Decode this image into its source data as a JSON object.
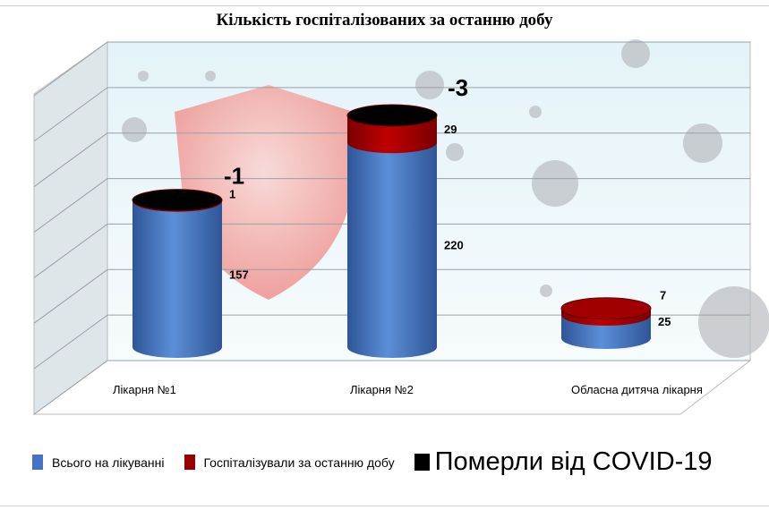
{
  "chart_data": {
    "type": "bar",
    "style": "3d-stacked-cylinder",
    "title": "Кількість госпіталізованих за останню добу",
    "categories": [
      "Лікарня №1",
      "Лікарня №2",
      "Обласна дитяча лікарня"
    ],
    "series": [
      {
        "name": "Всього на лікуванні",
        "values": [
          157,
          220,
          25
        ],
        "color": "#4472C4"
      },
      {
        "name": "Госпіталізували за останню добу",
        "values": [
          1,
          29,
          7
        ],
        "color": "#990000"
      },
      {
        "name": "Померли від COVID-19",
        "values": [
          1,
          3,
          0
        ],
        "color": "#000000"
      }
    ],
    "data_labels": {
      "total": [
        "157",
        "220",
        "25"
      ],
      "hospitalized": [
        "1",
        "29",
        "7"
      ],
      "deaths": [
        "-1",
        "-3",
        ""
      ]
    },
    "ylim": [
      0,
      300
    ],
    "grid": true,
    "legend_position": "bottom"
  }
}
